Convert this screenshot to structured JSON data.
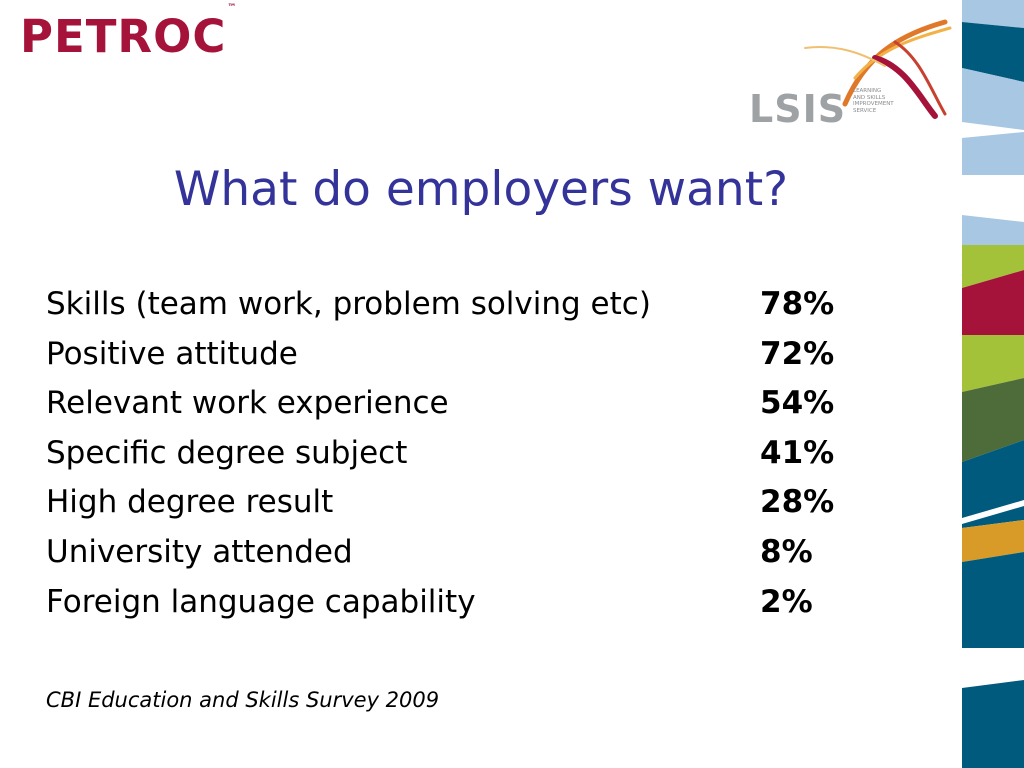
{
  "logos": {
    "left_brand": "PETROC",
    "left_brand_mark": "™",
    "right_brand": "LSIS",
    "right_tagline": [
      "LEARNING",
      "AND SKILLS",
      "IMPROVEMENT",
      "SERVICE"
    ]
  },
  "slide": {
    "title": "What do employers want?",
    "items": [
      {
        "label": "Skills (team work, problem solving etc)",
        "value": "78%"
      },
      {
        "label": "Positive attitude",
        "value": "72%"
      },
      {
        "label": "Relevant work experience",
        "value": "54%"
      },
      {
        "label": "Specific degree subject",
        "value": "41%"
      },
      {
        "label": "High degree result",
        "value": "28%"
      },
      {
        "label": "University attended",
        "value": "8%"
      },
      {
        "label": "Foreign language capability",
        "value": "2%"
      }
    ],
    "source": "CBI Education and Skills Survey 2009"
  },
  "colors": {
    "title": "#33339a",
    "petroc": "#a5123a",
    "stripe_light_blue": "#a7c7e2",
    "stripe_dark_blue": "#005a7d",
    "stripe_lime": "#a4c13a",
    "stripe_crimson": "#a5123a",
    "stripe_olive": "#4e6b3a",
    "stripe_orange": "#d89b27"
  }
}
